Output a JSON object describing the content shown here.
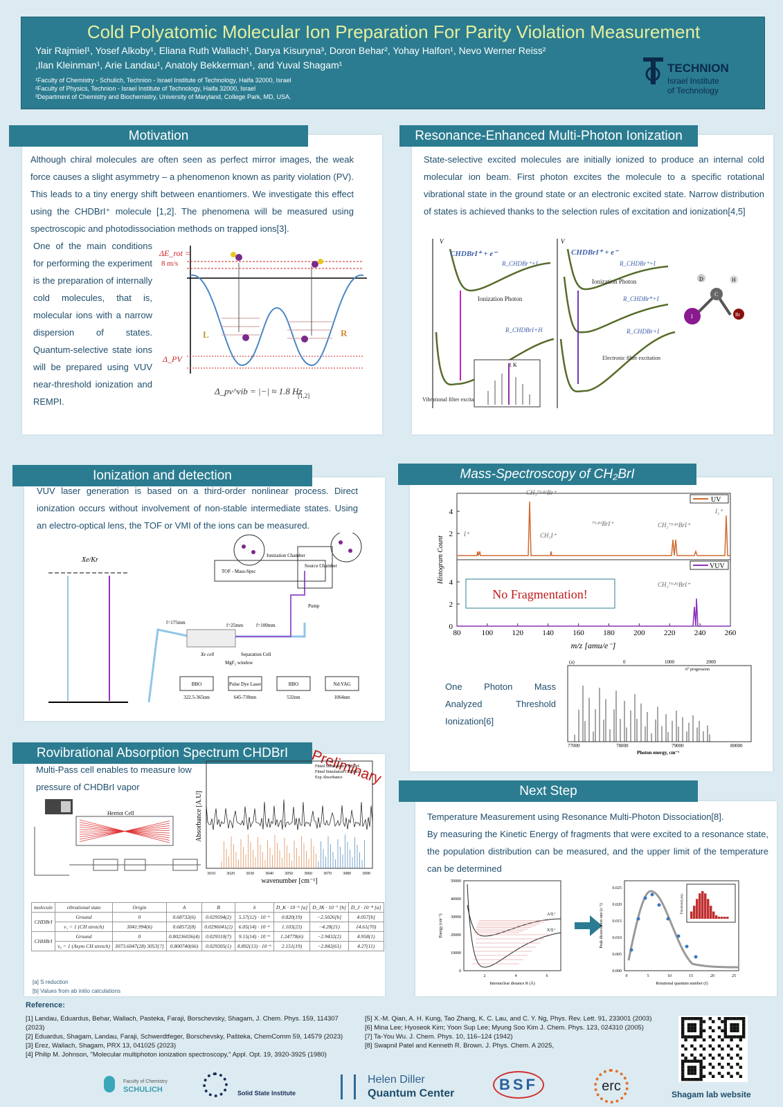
{
  "header": {
    "title": "Cold Polyatomic Molecular Ion Preparation For Parity Violation Measurement",
    "authors": [
      "Yair Rajmiel¹, Yosef Alkoby¹, Eliana Ruth Wallach¹,  Darya Kisuryna³, Doron Behar², Yohay Halfon¹, Nevo Werner Reiss²",
      ",Ilan Kleinman¹, Arie Landau¹, Anatoly Bekkerman¹, and Yuval Shagam¹"
    ],
    "affiliations": [
      "¹Faculty of Chemistry - Schulich, Technion - Israel Institute of Technology, Haifa 32000, Israel",
      "²Faculty of Physics, Technion - Israel Institute of Technology, Haifa 32000, Israel",
      "³Department of Chemistry and Biochemistry, University of Maryland, College Park, MD, USA."
    ],
    "logo": [
      "TECHNION",
      "Israel Institute",
      "of Technology"
    ]
  },
  "motivation": {
    "title": "Motivation",
    "paragraph1": "Although chiral molecules are often seen as perfect mirror images, the weak force causes a slight asymmetry – a phenomenon known as parity violation (PV). This leads to a tiny energy shift between enantiomers. We investigate this effect using the CHDBrI⁺ molecule [1,2]. The phenomena will be measured using spectroscopic and photodissociation methods on trapped ions[3].",
    "paragraph2": "One of the main conditions for performing the experiment is the preparation of internally cold molecules, that is, molecular ions with a narrow dispersion of states. Quantum-selective state ions will be prepared using VUV near-threshold ionization and REMPI.",
    "figure": {
      "delta_rot": "ΔE_rot =",
      "speed": "8 m/s",
      "delta_pv": "Δ_PV",
      "left": "L",
      "right": "R",
      "formula": "Δ_pv^vib = |−| ≈ 1.8 Hz",
      "ref": "[1,2]"
    }
  },
  "rempi": {
    "title": "Resonance-Enhanced Multi-Photon Ionization",
    "paragraph": "State-selective excited molecules are initially ionized to produce an internal cold molecular ion beam. First photon excites the molecule to a specific rotational vibrational state in the ground state or an electronic excited state. Narrow distribution of states is achieved thanks to the selection rules of excitation and ionization[4,5]",
    "figure": {
      "v": "V",
      "ion": "CHDBrI⁺ + e⁻",
      "r_ion": "R_CHDBr⁺+I",
      "r_neutral": "R_CHDBrI+H",
      "r_excited": "R_CHDBr*+I",
      "r_ground": "R_CHDBr+I",
      "photon": "Ionization Photon",
      "vib_filter": "Vibrational filter excitation",
      "elec_filter": "Electronic filter excitation",
      "temp": "1 K",
      "atoms": [
        "D",
        "H",
        "C",
        "I",
        "Br"
      ]
    }
  },
  "ionization": {
    "title": "Ionization and detection",
    "paragraph": "VUV laser generation is based on a third-order nonlinear process. Direct ionization occurs without involvement of non-stable intermediate states. Using an electro-optical lens, the TOF or VMI of the ions can be measured.",
    "figure": {
      "gas": "Xe/Kr",
      "labels": [
        "TOF - Mass-Spec",
        "Ionization Chamber",
        "Source Chamber",
        "Pump",
        "Separation Cell",
        "MgF₂ window",
        "Xe cell",
        "f=175mm",
        "f=25mm",
        "f=100mm"
      ],
      "boxes": [
        "BBO",
        "Pulse Dye Laser",
        "BBO",
        "Nd:YAG"
      ],
      "wavelengths": [
        "322.5-365nm",
        "645-730nm",
        "532nm",
        "1064nm"
      ]
    }
  },
  "mass_spec": {
    "title": "Mass-Spectroscopy of CH₂BrI",
    "x_label": "m/z [amu/e⁻]",
    "y_label": "Histogram Count",
    "xticks": [
      80,
      100,
      120,
      140,
      160,
      180,
      200,
      220,
      240,
      260
    ],
    "yticks_top": [
      2,
      4
    ],
    "yticks_bottom": [
      0,
      2,
      4
    ],
    "legend": [
      "UV",
      "VUV"
    ],
    "peaks": [
      "I⁺",
      "CH₂⁷⁹·⁸¹Br⁺",
      "CH₂I⁺",
      "⁷⁹·⁸¹BrI⁺",
      "CH₂⁷⁹·⁸¹BrI⁺",
      "I₂⁺",
      "CH₂⁷⁹·⁸¹BrI⁺"
    ],
    "callout": "No Fragmentation!",
    "mati": "One Photon Mass Analyzed Threshold Ionization[6]",
    "inset": {
      "panel": "(a)",
      "x_label": "Photon energy, cm⁻¹",
      "xticks": [
        "77000",
        "78000",
        "79000",
        "80000"
      ],
      "top_ticks": [
        "0",
        "1000",
        "2000"
      ],
      "progression": "6⁰ progression"
    }
  },
  "rovib": {
    "title": "Rovibrational Absorption Spectrum CHDBrI",
    "stamp": "Preliminary",
    "paragraph": "Multi-Pass cell enables to measure low pressure of CHDBrI vapor",
    "cell": "Herriot Cell",
    "plot": {
      "y_label": "Absorbance [A.U]",
      "x_label": "wavenumber [cm⁻¹]",
      "legend": [
        "Fitted Simulation CHHBrI",
        "Fitted Simulation CHDBrI",
        "Exp Absorbance"
      ],
      "xticks": [
        "3010",
        "3020",
        "3030",
        "3040",
        "3050",
        "3060",
        "3070",
        "3080",
        "3090"
      ]
    },
    "table": {
      "header": [
        "molecule",
        "vibrational state",
        "Origin",
        "A",
        "B",
        "δ",
        "D_K · 10⁻⁵ [a]",
        "D_JK · 10⁻⁷ [b]",
        "D_J · 10⁻⁸ [a]"
      ],
      "rows": [
        [
          "CHDBrI",
          "Ground",
          "0",
          "0.68732(6)",
          "0.029594(2)",
          "5.57(12) · 10⁻⁶",
          "0.820(19)",
          "−2.5026[b]",
          "4.057[b]"
        ],
        [
          "",
          "ν₁ = 1 (CH stretch)",
          "3041.994(6)",
          "0.68572(8)",
          "0.0296041(2)",
          "6.05(14) · 10⁻⁶",
          "1.103(23)",
          "−4.28(21)",
          "14.61(70)"
        ],
        [
          "CHHBrI",
          "Ground",
          "0",
          "0.80236036(4)",
          "0.029310(7)",
          "9.15(14) · 10⁻⁶",
          "1.24778(6)",
          "−2.9432(2)",
          "4.958(1)"
        ],
        [
          "",
          "ν₆ = 1 (Asym CH stretch)",
          "3073.6047(28) 3053[?]",
          "0.800740(66)",
          "0.029305(1)",
          "8.892(13) · 10⁻⁶",
          "2.151(19)",
          "−2.842(61)",
          "4.27(11)"
        ]
      ],
      "notes": [
        "[a] S reduction",
        "[b] Values from ab initio calculations"
      ]
    }
  },
  "next_step": {
    "title": "Next Step",
    "paragraph1": "Temperature Measurement using Resonance Multi-Photon Dissociation[8].",
    "paragraph2": "By measuring the Kinetic Energy of fragments that were excited to a resonance state, the population distribution can be measured, and the upper limit of the temperature can be determined",
    "left_plot": {
      "y_label": "Energy (cm⁻¹)",
      "x_label": "Internuclear distance R (Å)",
      "yticks": [
        "0",
        "10000",
        "20000",
        "30000",
        "40000",
        "50000"
      ],
      "xticks": [
        "2",
        "4",
        "6"
      ],
      "states": [
        "A¹Σ⁺",
        "X¹Σ⁺"
      ]
    },
    "right_plot": {
      "y_label": "Peak dissociation rate (s⁻¹)",
      "x_label": "Rotational quantum number (J)",
      "yticks": [
        "0.000",
        "0.005",
        "0.010",
        "0.015",
        "0.020",
        "0.025"
      ],
      "xticks": [
        "0",
        "5",
        "10",
        "15",
        "20",
        "25"
      ],
      "inset_label": "Fractional pop."
    }
  },
  "references": {
    "title": "Reference:",
    "left": [
      "[1] Landau, Eduardus, Behar, Wallach, Pasteka, Faraji, Borschevsky, Shagam, J. Chem. Phys. 159, 114307 (2023)",
      "[2] Eduardus, Shagam, Landau, Faraji, Schwerdtfeger, Borschevsky, Pašteka, ChemComm 59, 14579 (2023)",
      "[3] Erez, Wallach, Shagam, PRX 13, 041025 (2023)",
      "[4] Philip M. Johnson, \"Molecular multiphoton ionization spectroscopy,\" Appl. Opt. 19, 3920-3925 (1980)"
    ],
    "right": [
      "[5] X.-M. Qian, A. H. Kung, Tao Zhang, K. C. Lau, and C. Y. Ng, Phys. Rev. Lett. 91, 233001 (2003)",
      "[6] Mina Lee; Hyoseok Kim; Yoon Sup Lee; Myung Soo Kim J. Chem. Phys. 123, 024310 (2005)",
      "[7] Ta-You Wu. J. Chem. Phys. 10, 116–124 (1942)",
      "[8] Swapnil Patel and Kenneth R. Brown. J. Phys. Chem. A 2025,"
    ]
  },
  "footer": {
    "qr_caption": "Shagam lab website",
    "logos": [
      "Faculty of Chemistry",
      "SCHULICH",
      "Solid State Institute",
      "Helen Diller",
      "Quantum Center",
      "BSF",
      "erc"
    ]
  }
}
